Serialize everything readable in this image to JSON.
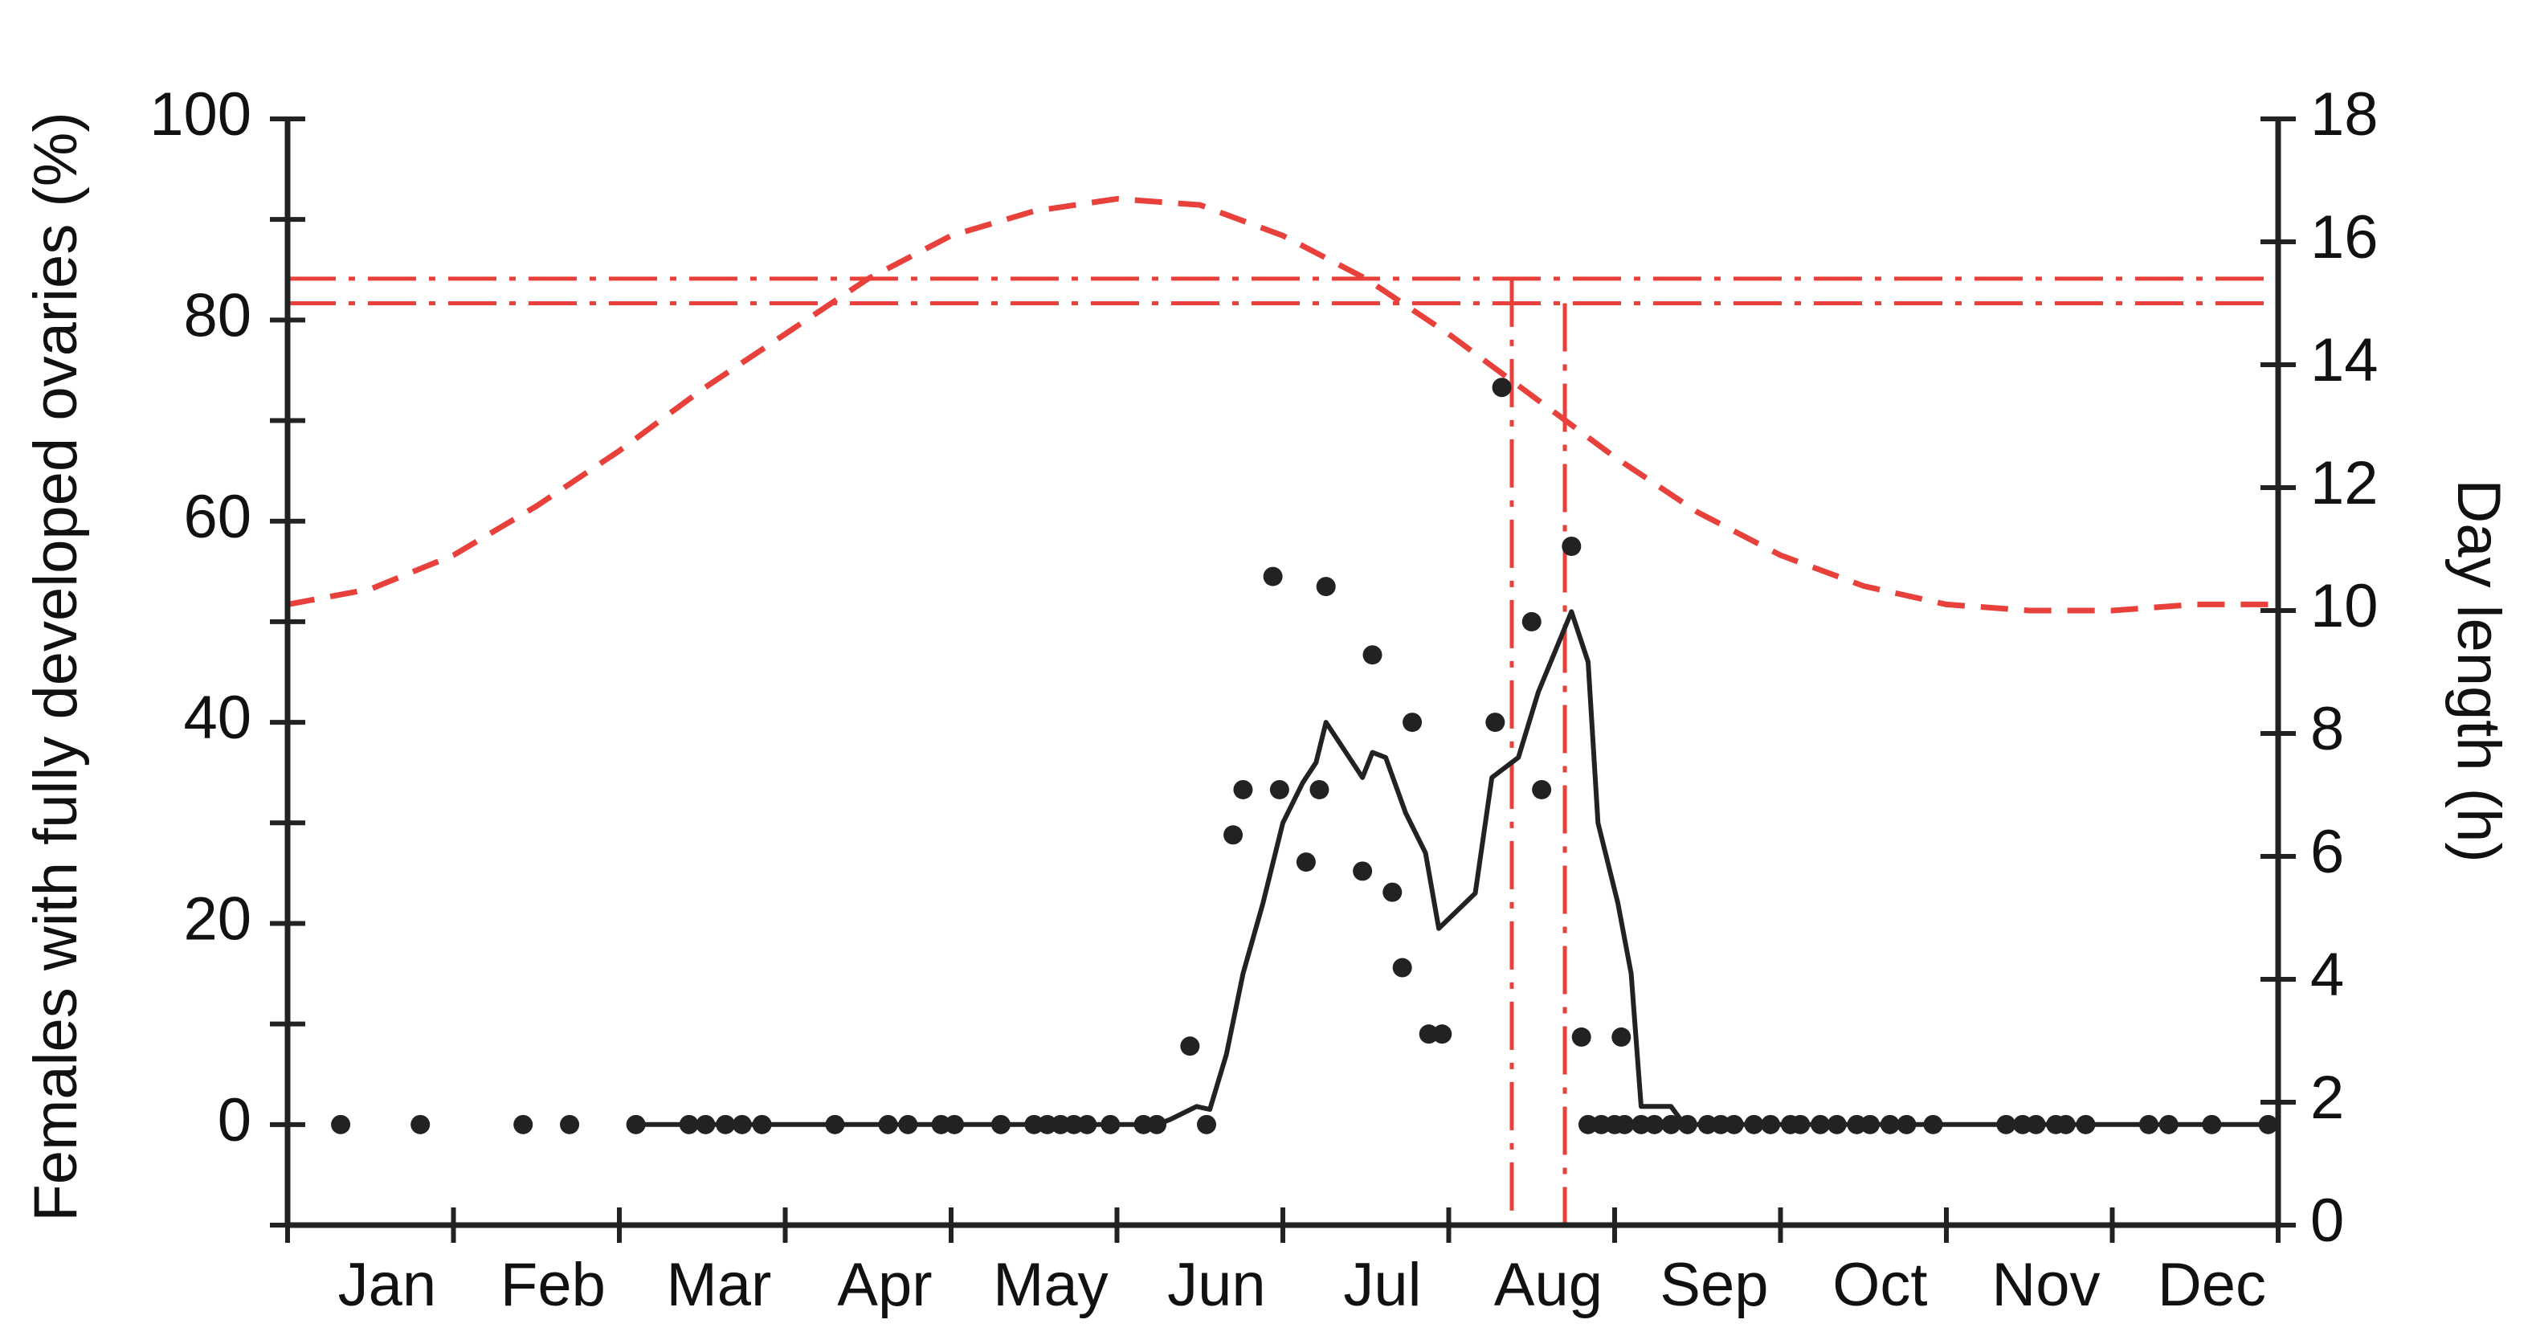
{
  "chart_data": {
    "type": "scatter",
    "x_axis": {
      "type": "month",
      "range_months": [
        0,
        12
      ],
      "month_labels": [
        "Jan",
        "Feb",
        "Mar",
        "Apr",
        "May",
        "Jun",
        "Jul",
        "Aug",
        "Sep",
        "Oct",
        "Nov",
        "Dec"
      ]
    },
    "y_axis_left": {
      "label": "Females with fully developed ovaries (%)",
      "range": [
        -10,
        100
      ],
      "ticks": [
        0,
        20,
        40,
        60,
        80,
        100
      ]
    },
    "y_axis_right": {
      "label": "Day length (h)",
      "range": [
        0,
        18
      ],
      "ticks": [
        0,
        2,
        4,
        6,
        8,
        10,
        12,
        14,
        16,
        18
      ]
    },
    "grid": false,
    "colors": {
      "data": "#222222",
      "day_length": "#e8403a"
    },
    "series": [
      {
        "style": "points",
        "axis": "left",
        "points": [
          [
            0.32,
            0
          ],
          [
            0.8,
            0
          ],
          [
            1.42,
            0
          ],
          [
            1.7,
            0
          ],
          [
            2.1,
            0
          ],
          [
            2.42,
            0
          ],
          [
            2.52,
            0
          ],
          [
            2.64,
            0
          ],
          [
            2.74,
            0
          ],
          [
            2.86,
            0
          ],
          [
            3.3,
            0
          ],
          [
            3.62,
            0
          ],
          [
            3.74,
            0
          ],
          [
            3.94,
            0
          ],
          [
            4.02,
            0
          ],
          [
            4.3,
            0
          ],
          [
            4.5,
            0
          ],
          [
            4.58,
            0
          ],
          [
            4.66,
            0
          ],
          [
            4.74,
            0
          ],
          [
            4.82,
            0
          ],
          [
            4.96,
            0
          ],
          [
            5.16,
            0
          ],
          [
            5.24,
            0
          ],
          [
            5.44,
            7.8
          ],
          [
            5.54,
            0
          ],
          [
            5.7,
            28.8
          ],
          [
            5.76,
            33.3
          ],
          [
            5.94,
            54.5
          ],
          [
            5.98,
            33.3
          ],
          [
            6.14,
            26.1
          ],
          [
            6.22,
            33.3
          ],
          [
            6.26,
            53.5
          ],
          [
            6.48,
            25.2
          ],
          [
            6.54,
            46.7
          ],
          [
            6.66,
            23.1
          ],
          [
            6.72,
            15.6
          ],
          [
            6.78,
            40
          ],
          [
            6.88,
            9
          ],
          [
            6.96,
            9
          ],
          [
            7.28,
            40
          ],
          [
            7.32,
            73.3
          ],
          [
            7.5,
            50
          ],
          [
            7.56,
            33.3
          ],
          [
            7.74,
            57.5
          ],
          [
            7.8,
            8.7
          ],
          [
            7.84,
            0
          ],
          [
            7.92,
            0
          ],
          [
            8.0,
            0
          ],
          [
            8.06,
            0
          ],
          [
            8.04,
            8.7
          ],
          [
            8.16,
            0
          ],
          [
            8.24,
            0
          ],
          [
            8.34,
            0
          ],
          [
            8.44,
            0
          ],
          [
            8.56,
            0
          ],
          [
            8.64,
            0
          ],
          [
            8.72,
            0
          ],
          [
            8.84,
            0
          ],
          [
            8.94,
            0
          ],
          [
            9.06,
            0
          ],
          [
            9.12,
            0
          ],
          [
            9.24,
            0
          ],
          [
            9.34,
            0
          ],
          [
            9.46,
            0
          ],
          [
            9.54,
            0
          ],
          [
            9.66,
            0
          ],
          [
            9.76,
            0
          ],
          [
            9.92,
            0
          ],
          [
            10.36,
            0
          ],
          [
            10.46,
            0
          ],
          [
            10.54,
            0
          ],
          [
            10.66,
            0
          ],
          [
            10.72,
            0
          ],
          [
            10.84,
            0
          ],
          [
            11.22,
            0
          ],
          [
            11.34,
            0
          ],
          [
            11.6,
            0
          ],
          [
            11.94,
            0
          ]
        ]
      },
      {
        "style": "solid-line",
        "axis": "left",
        "points": [
          [
            2.1,
            0
          ],
          [
            5.24,
            0
          ],
          [
            5.32,
            0.5
          ],
          [
            5.48,
            1.8
          ],
          [
            5.56,
            1.5
          ],
          [
            5.66,
            7
          ],
          [
            5.76,
            15
          ],
          [
            5.88,
            22
          ],
          [
            6.0,
            30
          ],
          [
            6.12,
            34
          ],
          [
            6.2,
            36
          ],
          [
            6.26,
            40
          ],
          [
            6.38,
            37
          ],
          [
            6.48,
            34.5
          ],
          [
            6.54,
            37
          ],
          [
            6.62,
            36.5
          ],
          [
            6.74,
            31
          ],
          [
            6.86,
            27
          ],
          [
            6.94,
            19.5
          ],
          [
            7.16,
            23
          ],
          [
            7.26,
            34.5
          ],
          [
            7.42,
            36.5
          ],
          [
            7.54,
            43
          ],
          [
            7.74,
            51
          ],
          [
            7.84,
            46
          ],
          [
            7.9,
            30
          ],
          [
            8.02,
            22
          ],
          [
            8.1,
            15
          ],
          [
            8.16,
            1.8
          ],
          [
            8.34,
            1.8
          ],
          [
            8.42,
            0
          ],
          [
            12,
            0
          ]
        ]
      },
      {
        "style": "dashed-line",
        "axis": "right",
        "points": [
          [
            0,
            10.1
          ],
          [
            0.5,
            10.35
          ],
          [
            1,
            10.9
          ],
          [
            1.5,
            11.7
          ],
          [
            2,
            12.6
          ],
          [
            2.5,
            13.6
          ],
          [
            3,
            14.5
          ],
          [
            3.5,
            15.4
          ],
          [
            4,
            16.1
          ],
          [
            4.5,
            16.5
          ],
          [
            5,
            16.7
          ],
          [
            5.5,
            16.6
          ],
          [
            6,
            16.1
          ],
          [
            6.5,
            15.4
          ],
          [
            7,
            14.5
          ],
          [
            7.5,
            13.5
          ],
          [
            8,
            12.5
          ],
          [
            8.5,
            11.6
          ],
          [
            9,
            10.9
          ],
          [
            9.5,
            10.4
          ],
          [
            10,
            10.1
          ],
          [
            10.5,
            10.0
          ],
          [
            11,
            10.0
          ],
          [
            11.5,
            10.1
          ],
          [
            12,
            10.1
          ]
        ]
      }
    ],
    "reference_lines": {
      "horizontal_day_length_h": [
        15.4,
        15.0
      ],
      "vertical_month_x": [
        7.38,
        7.7
      ]
    }
  }
}
